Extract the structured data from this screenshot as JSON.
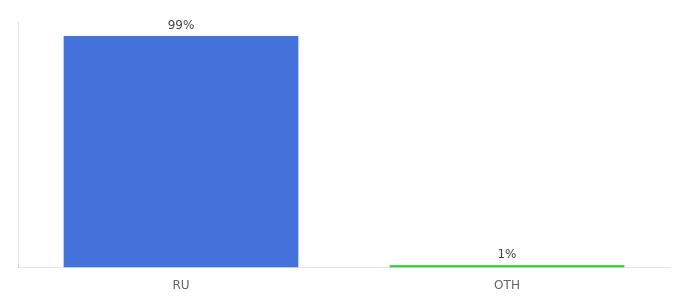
{
  "chart_data": {
    "type": "bar",
    "categories": [
      "RU",
      "OTH"
    ],
    "values": [
      99,
      1
    ],
    "value_labels": [
      "99%",
      "1%"
    ],
    "colors": [
      "#4472db",
      "#22cc22"
    ],
    "ylim": [
      0,
      105
    ],
    "grid": false,
    "data_labels": true,
    "tick_labels": "x"
  }
}
